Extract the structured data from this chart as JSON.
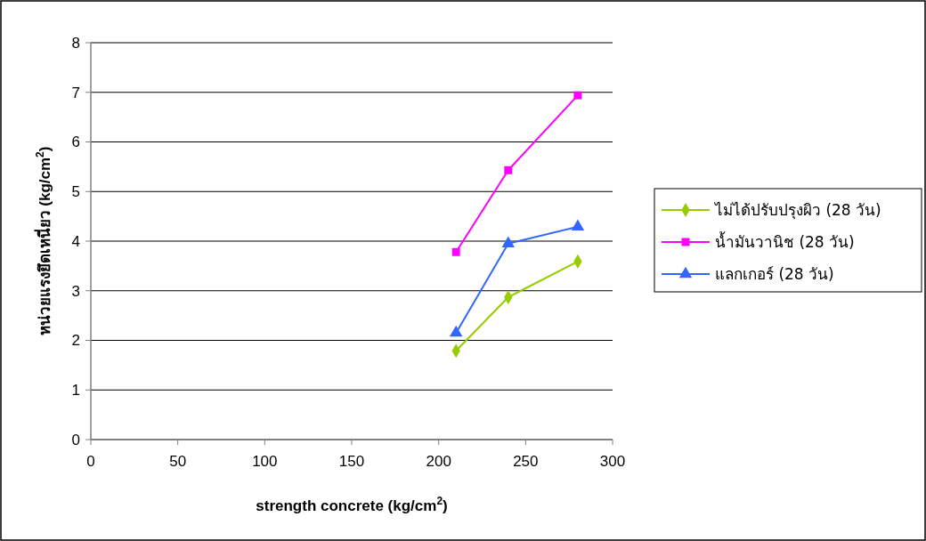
{
  "chart_data": {
    "type": "line",
    "xlabel": "strength concrete (kg/cm$^{2}$)",
    "ylabel": "หน่วยแรงยึดเหนี่ยว (kg/cm$^{2}$)",
    "xlim": [
      0,
      300
    ],
    "xticks": [
      0,
      50,
      100,
      150,
      200,
      250,
      300
    ],
    "ylim": [
      0,
      8
    ],
    "yticks": [
      0,
      1,
      2,
      3,
      4,
      5,
      6,
      7,
      8
    ],
    "grid": "y",
    "legend": "right",
    "line_style": "solid",
    "series": [
      {
        "name": "ไม่ได้ปรับปรุงผิว (28 วัน)",
        "color": "#99cc00",
        "marker": "diamond",
        "x": [
          210,
          240,
          280
        ],
        "values": [
          1.79,
          2.87,
          3.59
        ]
      },
      {
        "name": "น้ำมันวานิช (28 วัน)",
        "color": "#ff00ff",
        "marker": "square",
        "x": [
          210,
          240,
          280
        ],
        "values": [
          3.78,
          5.43,
          6.94
        ]
      },
      {
        "name": "แลกเกอร์ (28 วัน)",
        "color": "#3366ff",
        "marker": "triangle",
        "x": [
          210,
          240,
          280
        ],
        "values": [
          2.15,
          3.95,
          4.29
        ]
      }
    ]
  }
}
